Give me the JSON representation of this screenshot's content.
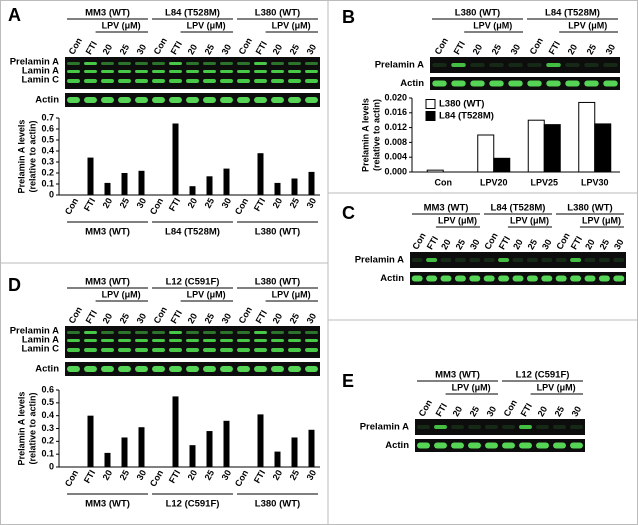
{
  "panels": [
    {
      "label": "A",
      "groups": [
        "MM3 (WT)",
        "L84 (T528M)",
        "L380 (WT)"
      ],
      "sublabel": "LPV (μM)",
      "lanes": [
        "Con",
        "FTI",
        "20",
        "25",
        "30"
      ],
      "blot_labels": [
        "Prelamin A",
        "Lamin A",
        "Lamin C",
        "Actin"
      ]
    },
    {
      "label": "B",
      "groups": [
        "L380 (WT)",
        "L84 (T528M)"
      ],
      "sublabel": "LPV (μM)",
      "lanes": [
        "Con",
        "FTI",
        "20",
        "25",
        "30"
      ],
      "blot_labels": [
        "Prelamin A",
        "Actin"
      ]
    },
    {
      "label": "C",
      "groups": [
        "MM3 (WT)",
        "L84 (T528M)",
        "L380 (WT)"
      ],
      "sublabel": "LPV (μM)",
      "lanes": [
        "Con",
        "FTI",
        "20",
        "25",
        "30"
      ],
      "blot_labels": [
        "Prelamin A",
        "Actin"
      ]
    },
    {
      "label": "D",
      "groups": [
        "MM3 (WT)",
        "L12 (C591F)",
        "L380 (WT)"
      ],
      "sublabel": "LPV (μM)",
      "lanes": [
        "Con",
        "FTI",
        "20",
        "25",
        "30"
      ],
      "blot_labels": [
        "Prelamin A",
        "Lamin A",
        "Lamin C",
        "Actin"
      ]
    },
    {
      "label": "E",
      "groups": [
        "MM3 (WT)",
        "L12 (C591F)"
      ],
      "sublabel": "LPV (μM)",
      "lanes": [
        "Con",
        "FTI",
        "20",
        "25",
        "30"
      ],
      "blot_labels": [
        "Prelamin A",
        "Actin"
      ]
    }
  ],
  "chart_data": [
    {
      "type": "bar",
      "ylabel": [
        "Prelamin A levels",
        "(relative to actin)"
      ],
      "categories": [
        "Con",
        "FTI",
        "20",
        "25",
        "30",
        "Con",
        "FTI",
        "20",
        "25",
        "30",
        "Con",
        "FTI",
        "20",
        "25",
        "30"
      ],
      "groups": [
        "MM3 (WT)",
        "L84 (T528M)",
        "L380 (WT)"
      ],
      "values": [
        0,
        0.34,
        0.11,
        0.2,
        0.22,
        0,
        0.65,
        0.08,
        0.17,
        0.24,
        0,
        0.38,
        0.11,
        0.15,
        0.21
      ],
      "color": "#000000",
      "ylim": [
        0,
        0.7
      ],
      "yticks": [
        0,
        0.1,
        0.2,
        0.3,
        0.4,
        0.5,
        0.6,
        0.7
      ]
    },
    {
      "type": "bar",
      "ylabel": [
        "Prelamin A levels",
        "(relative to actin)"
      ],
      "categories": [
        "Con",
        "LPV20",
        "LPV25",
        "LPV30"
      ],
      "series": [
        {
          "name": "L380 (WT)",
          "color": "#ffffff",
          "values": [
            0.0005,
            0.01,
            0.014,
            0.0188
          ]
        },
        {
          "name": "L84 (T528M)",
          "color": "#000000",
          "values": [
            0,
            0.0037,
            0.0128,
            0.013
          ]
        }
      ],
      "legend": "upper left",
      "ylim": [
        0,
        0.02
      ],
      "yticks": [
        {
          "value": 0,
          "label": "0.000"
        },
        {
          "value": 0.004,
          "label": "0.004"
        },
        {
          "value": 0.008,
          "label": "0.008"
        },
        {
          "value": 0.012,
          "label": "0.012"
        },
        {
          "value": 0.016,
          "label": "0.016"
        },
        {
          "value": 0.02,
          "label": "0.020"
        }
      ]
    },
    {
      "type": "bar",
      "ylabel": [
        "Prelamin A levels",
        "(relative to actin)"
      ],
      "categories": [
        "Con",
        "FTI",
        "20",
        "25",
        "30",
        "Con",
        "FTI",
        "20",
        "25",
        "30",
        "Con",
        "FTI",
        "20",
        "25",
        "30"
      ],
      "groups": [
        "MM3 (WT)",
        "L12 (C591F)",
        "L380 (WT)"
      ],
      "values": [
        0,
        0.4,
        0.11,
        0.23,
        0.31,
        0,
        0.55,
        0.17,
        0.28,
        0.36,
        0,
        0.41,
        0.12,
        0.23,
        0.29
      ],
      "color": "#000000",
      "ylim": [
        0,
        0.6
      ],
      "yticks": [
        0,
        0.1,
        0.2,
        0.3,
        0.4,
        0.5,
        0.6
      ]
    }
  ]
}
